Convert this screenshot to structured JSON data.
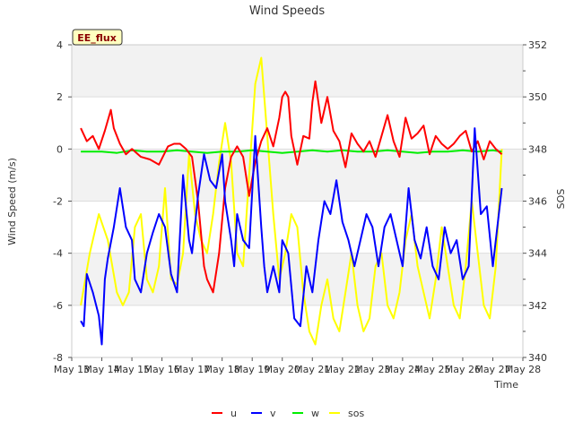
{
  "chart_data": {
    "type": "line",
    "title": "Wind Speeds",
    "xlabel": "Time",
    "ylabel": "Wind Speed (m/s)",
    "y2label": "SOS",
    "badge": "EE_flux",
    "xlim": [
      13,
      28
    ],
    "x_ticks": [
      13,
      14,
      15,
      16,
      17,
      18,
      19,
      20,
      21,
      22,
      23,
      24,
      25,
      26,
      27,
      28
    ],
    "x_tick_labels": [
      "May 13",
      "May 14",
      "May 15",
      "May 16",
      "May 17",
      "May 18",
      "May 19",
      "May 20",
      "May 21",
      "May 22",
      "May 23",
      "May 24",
      "May 25",
      "May 26",
      "May 27",
      "May 28"
    ],
    "ylim": [
      -8,
      4
    ],
    "y_ticks": [
      -8,
      -6,
      -4,
      -2,
      0,
      2,
      4
    ],
    "y_tick_labels": [
      "-8",
      "-6",
      "-4",
      "-2",
      "0",
      "2",
      "4"
    ],
    "y2lim": [
      340,
      352
    ],
    "y2_ticks": [
      340,
      342,
      344,
      346,
      348,
      350,
      352
    ],
    "y2_tick_labels": [
      "340",
      "342",
      "344",
      "346",
      "348",
      "350",
      "352"
    ],
    "series": [
      {
        "name": "u",
        "axis": "left",
        "color": "#ff0000",
        "x": [
          13.3,
          13.5,
          13.7,
          13.9,
          14.1,
          14.3,
          14.4,
          14.6,
          14.8,
          15.0,
          15.3,
          15.6,
          15.9,
          16.2,
          16.4,
          16.6,
          16.8,
          17.0,
          17.2,
          17.4,
          17.5,
          17.7,
          17.9,
          18.1,
          18.3,
          18.5,
          18.7,
          18.9,
          19.1,
          19.3,
          19.5,
          19.7,
          19.9,
          20.0,
          20.1,
          20.2,
          20.3,
          20.5,
          20.7,
          20.9,
          21.0,
          21.1,
          21.3,
          21.5,
          21.7,
          21.9,
          22.1,
          22.3,
          22.5,
          22.7,
          22.9,
          23.1,
          23.3,
          23.5,
          23.7,
          23.9,
          24.1,
          24.3,
          24.5,
          24.7,
          24.9,
          25.1,
          25.3,
          25.5,
          25.7,
          25.9,
          26.1,
          26.3,
          26.5,
          26.7,
          26.9,
          27.1,
          27.3
        ],
        "values": [
          0.8,
          0.3,
          0.5,
          0.0,
          0.7,
          1.5,
          0.8,
          0.2,
          -0.2,
          0.0,
          -0.3,
          -0.4,
          -0.6,
          0.1,
          0.2,
          0.2,
          0.0,
          -0.3,
          -2.0,
          -4.5,
          -5.0,
          -5.5,
          -4.0,
          -1.5,
          -0.3,
          0.1,
          -0.3,
          -1.8,
          -0.5,
          0.3,
          0.8,
          0.1,
          1.2,
          2.0,
          2.2,
          2.0,
          0.5,
          -0.6,
          0.5,
          0.4,
          1.8,
          2.6,
          1.0,
          2.0,
          0.7,
          0.3,
          -0.7,
          0.6,
          0.2,
          -0.1,
          0.3,
          -0.3,
          0.5,
          1.3,
          0.3,
          -0.3,
          1.2,
          0.4,
          0.6,
          0.9,
          -0.2,
          0.5,
          0.2,
          0.0,
          0.2,
          0.5,
          0.7,
          -0.1,
          0.3,
          -0.4,
          0.3,
          0.0,
          -0.2
        ]
      },
      {
        "name": "v",
        "axis": "left",
        "color": "#0000ff",
        "x": [
          13.3,
          13.4,
          13.5,
          13.7,
          13.9,
          14.0,
          14.1,
          14.2,
          14.4,
          14.6,
          14.8,
          15.0,
          15.1,
          15.3,
          15.5,
          15.7,
          15.9,
          16.1,
          16.3,
          16.5,
          16.7,
          16.9,
          17.0,
          17.2,
          17.4,
          17.6,
          17.8,
          18.0,
          18.1,
          18.3,
          18.4,
          18.5,
          18.7,
          18.9,
          19.1,
          19.3,
          19.4,
          19.5,
          19.7,
          19.9,
          20.0,
          20.2,
          20.4,
          20.6,
          20.8,
          21.0,
          21.2,
          21.4,
          21.6,
          21.8,
          22.0,
          22.2,
          22.4,
          22.6,
          22.8,
          23.0,
          23.2,
          23.4,
          23.6,
          23.8,
          24.0,
          24.2,
          24.4,
          24.6,
          24.8,
          25.0,
          25.2,
          25.4,
          25.6,
          25.8,
          26.0,
          26.2,
          26.4,
          26.6,
          26.8,
          27.0,
          27.3
        ],
        "values": [
          -6.6,
          -6.8,
          -4.8,
          -5.5,
          -6.4,
          -7.5,
          -5.0,
          -4.2,
          -3.0,
          -1.5,
          -3.0,
          -3.5,
          -5.0,
          -5.5,
          -4.0,
          -3.2,
          -2.5,
          -3.0,
          -4.8,
          -5.5,
          -1.0,
          -3.5,
          -4.0,
          -1.8,
          -0.2,
          -1.2,
          -1.5,
          -0.2,
          -2.0,
          -3.5,
          -4.5,
          -2.5,
          -3.5,
          -3.8,
          0.5,
          -3.0,
          -4.5,
          -5.5,
          -4.5,
          -5.5,
          -3.5,
          -4.0,
          -6.5,
          -6.8,
          -4.5,
          -5.5,
          -3.5,
          -2.0,
          -2.5,
          -1.2,
          -2.8,
          -3.5,
          -4.5,
          -3.5,
          -2.5,
          -3.0,
          -4.5,
          -3.0,
          -2.5,
          -3.5,
          -4.5,
          -1.5,
          -3.5,
          -4.2,
          -3.0,
          -4.5,
          -5.0,
          -3.0,
          -4.0,
          -3.5,
          -5.0,
          -4.5,
          0.8,
          -2.5,
          -2.2,
          -4.5,
          -1.5
        ]
      },
      {
        "name": "w",
        "axis": "left",
        "color": "#00ee00",
        "x": [
          13.3,
          14.0,
          14.5,
          15.0,
          15.5,
          16.0,
          16.5,
          17.0,
          17.5,
          18.0,
          18.5,
          19.0,
          19.5,
          20.0,
          20.5,
          21.0,
          21.5,
          22.0,
          22.5,
          23.0,
          23.5,
          24.0,
          24.5,
          25.0,
          25.5,
          26.0,
          26.5,
          27.0,
          27.3
        ],
        "values": [
          -0.1,
          -0.1,
          -0.15,
          -0.05,
          -0.1,
          -0.1,
          -0.05,
          -0.1,
          -0.15,
          -0.1,
          -0.1,
          -0.05,
          -0.1,
          -0.15,
          -0.1,
          -0.05,
          -0.1,
          -0.05,
          -0.1,
          -0.1,
          -0.05,
          -0.1,
          -0.15,
          -0.1,
          -0.1,
          -0.05,
          -0.1,
          -0.05,
          -0.1
        ]
      },
      {
        "name": "sos",
        "axis": "right",
        "color": "#ffff00",
        "x": [
          13.3,
          13.6,
          13.9,
          14.2,
          14.5,
          14.7,
          14.9,
          15.1,
          15.3,
          15.5,
          15.7,
          15.9,
          16.1,
          16.3,
          16.5,
          16.7,
          16.9,
          17.1,
          17.3,
          17.5,
          17.7,
          17.9,
          18.1,
          18.3,
          18.5,
          18.7,
          18.9,
          19.1,
          19.3,
          19.5,
          19.7,
          19.9,
          20.1,
          20.3,
          20.5,
          20.7,
          20.9,
          21.1,
          21.3,
          21.5,
          21.7,
          21.9,
          22.1,
          22.3,
          22.5,
          22.7,
          22.9,
          23.1,
          23.3,
          23.5,
          23.7,
          23.9,
          24.1,
          24.3,
          24.5,
          24.7,
          24.9,
          25.1,
          25.3,
          25.5,
          25.7,
          25.9,
          26.1,
          26.3,
          26.5,
          26.7,
          26.9,
          27.1,
          27.3
        ],
        "values": [
          342.0,
          344.0,
          345.5,
          344.5,
          342.5,
          342.0,
          342.5,
          345.0,
          345.5,
          343.0,
          342.5,
          343.5,
          346.5,
          343.0,
          342.8,
          344.0,
          347.8,
          345.5,
          344.5,
          344.0,
          345.5,
          347.5,
          349.0,
          347.5,
          344.0,
          343.5,
          347.0,
          350.5,
          351.5,
          348.5,
          345.5,
          343.0,
          344.0,
          345.5,
          345.0,
          342.5,
          341.0,
          340.5,
          342.0,
          343.0,
          341.5,
          341.0,
          342.5,
          344.0,
          342.0,
          341.0,
          341.5,
          343.5,
          344.0,
          342.0,
          341.5,
          342.5,
          344.5,
          345.5,
          343.5,
          342.5,
          341.5,
          343.0,
          345.0,
          343.5,
          342.0,
          341.5,
          343.5,
          346.0,
          344.0,
          342.0,
          341.5,
          343.5,
          348.0
        ]
      }
    ]
  }
}
